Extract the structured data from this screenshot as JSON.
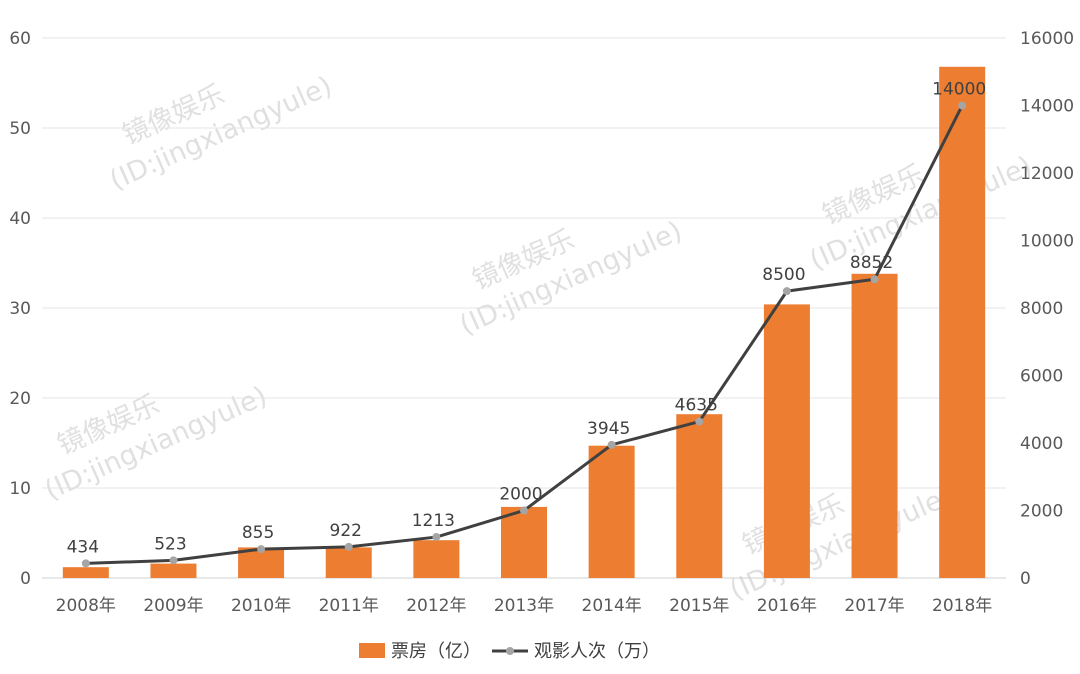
{
  "chart_data": {
    "type": "bar",
    "categories": [
      "2008年",
      "2009年",
      "2010年",
      "2011年",
      "2012年",
      "2013年",
      "2014年",
      "2015年",
      "2016年",
      "2017年",
      "2018年"
    ],
    "series": [
      {
        "name": "票房（亿）",
        "kind": "bar",
        "axis": "left",
        "color": "#ED7D31",
        "values": [
          1.2,
          1.6,
          3.4,
          3.4,
          4.2,
          7.9,
          14.7,
          18.2,
          30.4,
          33.8,
          56.8
        ]
      },
      {
        "name": "观影人次（万）",
        "kind": "line",
        "axis": "right",
        "color": "#404040",
        "marker_color": "#A5A5A5",
        "values": [
          434,
          523,
          855,
          922,
          1213,
          2000,
          3945,
          4635,
          8500,
          8852,
          14000
        ],
        "labels": [
          "434",
          "523",
          "855",
          "922",
          "1213",
          "2000",
          "3945",
          "4635",
          "8500",
          "8852",
          "14000"
        ]
      }
    ],
    "y_left": {
      "min": 0,
      "max": 60,
      "ticks": [
        "0",
        "10",
        "20",
        "30",
        "40",
        "50",
        "60"
      ]
    },
    "y_right": {
      "min": 0,
      "max": 16000,
      "ticks": [
        "0",
        "2000",
        "4000",
        "6000",
        "8000",
        "10000",
        "12000",
        "14000",
        "16000"
      ]
    },
    "grid": true,
    "legend_position": "bottom"
  },
  "watermark": {
    "line1": "镜像娱乐",
    "line2": "(ID:jingxiangyule)"
  }
}
